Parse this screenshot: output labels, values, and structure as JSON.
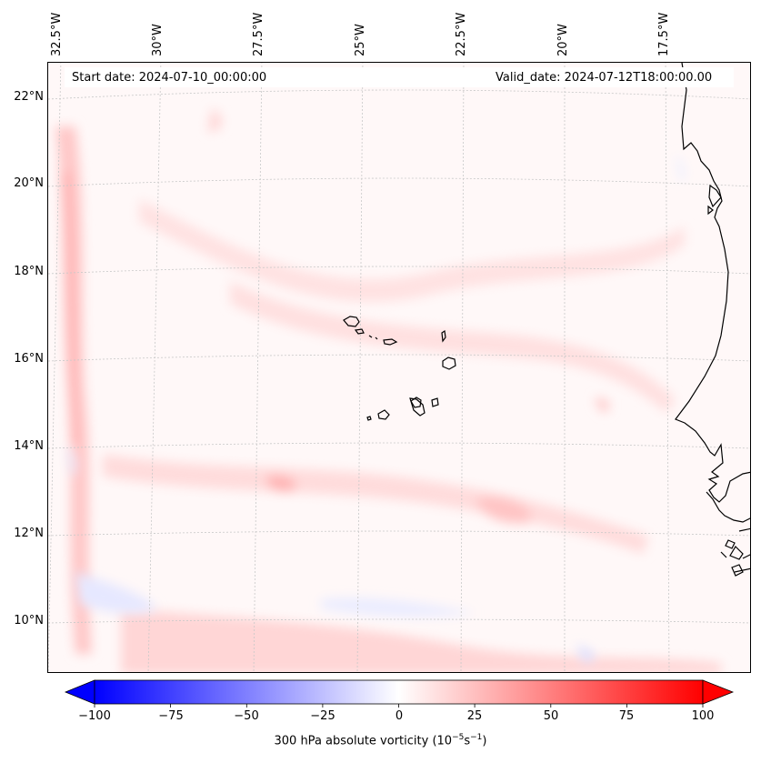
{
  "header": {
    "start_date": "Start date: 2024-07-10_00:00:00",
    "valid_date": "Valid_date: 2024-07-12T18:00:00.00"
  },
  "longitude_labels": [
    "32.5°W",
    "30°W",
    "27.5°W",
    "25°W",
    "22.5°W",
    "20°W",
    "17.5°W"
  ],
  "latitude_labels": [
    "22°N",
    "20°N",
    "18°N",
    "16°N",
    "14°N",
    "12°N",
    "10°N"
  ],
  "map": {
    "field": "300 hPa absolute vorticity",
    "region": "Eastern tropical Atlantic, Cape Verde islands and West African coast",
    "background_color": "#fff8f8",
    "coastline_color": "#000000",
    "gridline_style": "dotted light gray"
  },
  "colorbar": {
    "label_prefix": "300 hPa absolute vorticity (10",
    "label_exp1": "−5",
    "label_mid": "s",
    "label_exp2": "−1",
    "label_suffix": ")",
    "min": -100,
    "max": 100,
    "ticks": [
      "−100",
      "−75",
      "−50",
      "−25",
      "0",
      "25",
      "50",
      "75",
      "100"
    ],
    "colormap": "bwr",
    "extend": "both"
  }
}
